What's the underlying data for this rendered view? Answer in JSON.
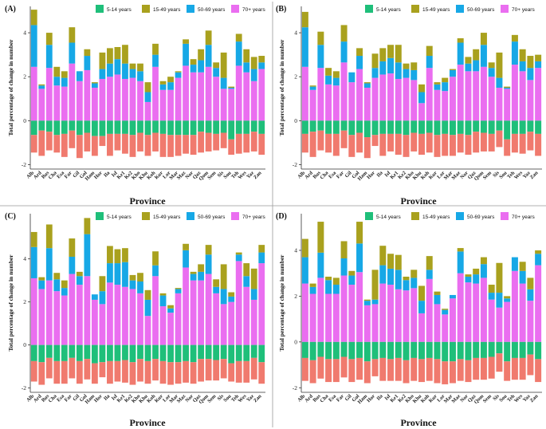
{
  "figure": {
    "x_axis_label": "Province",
    "y_axis_label": "Total percentage of change in number"
  },
  "colors": {
    "5-14 years": "#1fbf7a",
    "15-49 years": "#a9a11e",
    "50-69 years": "#17a8e6",
    "70+ years": "#ea6ef0",
    "negative_lower": "#f07a6e",
    "negative_upper": "#1fbf7a"
  },
  "chart_data": [
    {
      "panel_label": "(A)",
      "type": "bar",
      "stacked": true,
      "title": "",
      "xlabel": "Province",
      "ylabel": "Total percentage of change in number",
      "ylim": [
        -2.2,
        5.2
      ],
      "yticks": [
        -2,
        0,
        2,
        4
      ],
      "legend": [
        "5-14 years",
        "15-49 years",
        "50-69 years",
        "70+ years"
      ],
      "legend_position": "top-right",
      "categories": [
        "Alb",
        "Ard",
        "Bus",
        "Cha",
        "Esa",
        "Far",
        "Gil",
        "Gol",
        "Ham",
        "Hor",
        "Ila",
        "Isf",
        "Ke1",
        "Ke2",
        "Kho",
        "Khu",
        "Koh",
        "Kur",
        "Lor",
        "Mar",
        "Maz",
        "Nor",
        "Qaz",
        "Qom",
        "Sem",
        "Sis",
        "Sou",
        "Teh",
        "Wes",
        "Yaz",
        "Zan"
      ],
      "series": [
        {
          "name": "70+ years",
          "values": [
            2.45,
            1.45,
            2.4,
            1.6,
            1.55,
            2.6,
            1.8,
            2.3,
            1.5,
            1.9,
            2.0,
            2.1,
            1.9,
            1.95,
            1.8,
            0.85,
            2.45,
            1.4,
            1.4,
            1.95,
            2.5,
            2.2,
            2.2,
            2.45,
            2.0,
            1.45,
            1.45,
            2.5,
            2.2,
            1.8,
            2.35
          ]
        },
        {
          "name": "50-69 years",
          "values": [
            1.9,
            0.15,
            1.05,
            0.4,
            0.4,
            0.95,
            0.45,
            0.65,
            0.2,
            0.45,
            0.6,
            0.7,
            0.7,
            0.4,
            0.45,
            0.45,
            0.55,
            0.25,
            0.35,
            0.25,
            1.0,
            0.35,
            0.55,
            1.0,
            0.4,
            0.5,
            0.05,
            1.1,
            0.45,
            0.55,
            0.3
          ]
        },
        {
          "name": "15-49 years",
          "values": [
            0.7,
            0.05,
            0.55,
            0.45,
            0.3,
            0.7,
            0.0,
            0.3,
            0.05,
            0.75,
            0.7,
            0.55,
            0.85,
            0.25,
            0.35,
            0.45,
            0.5,
            0.15,
            0.25,
            0.05,
            0.2,
            0.25,
            0.5,
            0.65,
            0.25,
            1.15,
            0.05,
            0.35,
            0.6,
            0.55,
            0.3
          ]
        },
        {
          "name": "5-14 years",
          "values": [
            -0.65,
            -0.45,
            -0.5,
            -0.65,
            -0.6,
            -0.45,
            -0.65,
            -0.55,
            -0.7,
            -0.7,
            -0.6,
            -0.6,
            -0.6,
            -0.65,
            -0.55,
            -0.65,
            -0.55,
            -0.6,
            -0.65,
            -0.65,
            -0.65,
            -0.65,
            -0.5,
            -0.55,
            -0.6,
            -0.55,
            -0.85,
            -0.6,
            -0.6,
            -0.5,
            -0.6
          ]
        },
        {
          "name": "negative_lower",
          "values": [
            -0.8,
            -1.15,
            -0.85,
            -0.8,
            -1.05,
            -0.8,
            -1.05,
            -0.85,
            -0.9,
            -0.45,
            -1.0,
            -0.75,
            -0.9,
            -1.0,
            -0.85,
            -0.95,
            -0.85,
            -1.05,
            -1.0,
            -0.95,
            -0.85,
            -0.9,
            -0.95,
            -0.85,
            -0.75,
            -0.7,
            -0.7,
            -0.9,
            -0.85,
            -0.9,
            -0.95
          ]
        }
      ]
    },
    {
      "panel_label": "(B)",
      "type": "bar",
      "stacked": true,
      "title": "",
      "xlabel": "Province",
      "ylabel": "Total percentage of change in number",
      "ylim": [
        -2.2,
        5.2
      ],
      "yticks": [
        -2,
        0,
        2,
        4
      ],
      "legend": [
        "5-14 years",
        "15-49 years",
        "50-69 years",
        "70+ years"
      ],
      "legend_position": "top-right",
      "categories": [
        "Alb",
        "Ard",
        "Bus",
        "Cha",
        "Esa",
        "Far",
        "Gil",
        "Gol",
        "Ham",
        "Hor",
        "Ila",
        "Isf",
        "Ke1",
        "Ke2",
        "Kho",
        "Khu",
        "Koh",
        "Kur",
        "Lor",
        "Mar",
        "Maz",
        "Nor",
        "Qaz",
        "Qom",
        "Sem",
        "Sis",
        "Sou",
        "Teh",
        "Wes",
        "Yaz",
        "Zan"
      ],
      "series": [
        {
          "name": "70+ years",
          "values": [
            2.45,
            1.4,
            2.4,
            1.65,
            1.6,
            2.65,
            1.75,
            2.35,
            1.5,
            1.95,
            2.1,
            2.15,
            1.9,
            1.95,
            1.85,
            0.8,
            2.4,
            1.4,
            1.35,
            2.0,
            2.55,
            2.25,
            2.25,
            2.45,
            2.0,
            1.5,
            1.45,
            2.55,
            2.25,
            1.85,
            2.4
          ]
        },
        {
          "name": "50-69 years",
          "values": [
            1.8,
            0.15,
            1.05,
            0.4,
            0.35,
            0.95,
            0.45,
            0.6,
            0.2,
            0.45,
            0.6,
            0.7,
            0.75,
            0.4,
            0.45,
            0.5,
            0.55,
            0.25,
            0.4,
            0.3,
            1.0,
            0.35,
            0.5,
            1.0,
            0.4,
            0.45,
            0.05,
            1.05,
            0.45,
            0.55,
            0.3
          ]
        },
        {
          "name": "15-49 years",
          "values": [
            0.7,
            0.05,
            0.6,
            0.35,
            0.3,
            0.75,
            0.0,
            0.35,
            0.05,
            0.65,
            0.6,
            0.6,
            0.8,
            0.25,
            0.35,
            0.35,
            0.45,
            0.1,
            0.2,
            0.05,
            0.2,
            0.3,
            0.5,
            0.55,
            0.25,
            1.15,
            0.05,
            0.3,
            0.55,
            0.55,
            0.3
          ]
        },
        {
          "name": "5-14 years",
          "values": [
            -0.6,
            -0.5,
            -0.45,
            -0.6,
            -0.6,
            -0.45,
            -0.65,
            -0.55,
            -0.75,
            -0.65,
            -0.6,
            -0.6,
            -0.6,
            -0.65,
            -0.55,
            -0.6,
            -0.55,
            -0.65,
            -0.6,
            -0.65,
            -0.6,
            -0.65,
            -0.5,
            -0.55,
            -0.6,
            -0.45,
            -0.85,
            -0.6,
            -0.6,
            -0.5,
            -0.6
          ]
        },
        {
          "name": "negative_lower",
          "values": [
            -0.85,
            -1.15,
            -0.9,
            -0.85,
            -1.0,
            -0.8,
            -1.0,
            -0.9,
            -0.95,
            -0.5,
            -1.0,
            -0.8,
            -0.95,
            -1.0,
            -0.85,
            -0.95,
            -0.9,
            -1.0,
            -1.0,
            -0.95,
            -0.85,
            -0.9,
            -0.95,
            -0.85,
            -0.8,
            -0.75,
            -0.75,
            -0.85,
            -0.9,
            -0.85,
            -1.0
          ]
        }
      ]
    },
    {
      "panel_label": "(C)",
      "type": "bar",
      "stacked": true,
      "title": "",
      "xlabel": "Province",
      "ylabel": "Total percentage of change in number",
      "ylim": [
        -2.2,
        6.1
      ],
      "yticks": [
        -2,
        0,
        2,
        4
      ],
      "legend": [
        "5-14 years",
        "15-49 years",
        "50-69 years",
        "70+ years"
      ],
      "legend_position": "top-right",
      "categories": [
        "Alb",
        "Ard",
        "Bus",
        "Cha",
        "Esa",
        "Far",
        "Gil",
        "Gol",
        "Ham",
        "Hor",
        "Ila",
        "Isf",
        "Ke1",
        "Ke2",
        "Kho",
        "Khu",
        "Koh",
        "Kur",
        "Lor",
        "Mar",
        "Maz",
        "Nor",
        "Qaz",
        "Qom",
        "Sem",
        "Sis",
        "Sou",
        "Teh",
        "Wes",
        "Yaz",
        "Zan"
      ],
      "series": [
        {
          "name": "70+ years",
          "values": [
            3.1,
            2.6,
            3.0,
            2.5,
            2.3,
            3.3,
            2.8,
            3.2,
            2.1,
            1.9,
            2.9,
            2.8,
            2.7,
            2.6,
            2.4,
            1.35,
            3.2,
            1.8,
            1.5,
            2.4,
            3.6,
            3.0,
            3.0,
            3.3,
            2.4,
            1.9,
            2.0,
            3.9,
            2.7,
            2.1,
            3.8
          ]
        },
        {
          "name": "50-69 years",
          "values": [
            1.45,
            0.4,
            1.5,
            0.55,
            0.35,
            0.8,
            0.4,
            1.95,
            0.25,
            0.6,
            0.9,
            1.0,
            1.15,
            0.4,
            0.55,
            0.75,
            0.5,
            0.5,
            0.2,
            0.2,
            0.8,
            0.3,
            0.4,
            0.9,
            0.3,
            0.7,
            0.25,
            0.3,
            0.5,
            0.5,
            0.5
          ]
        },
        {
          "name": "15-49 years",
          "values": [
            0.7,
            0.15,
            1.1,
            0.3,
            0.35,
            0.85,
            0.2,
            0.75,
            0.0,
            0.7,
            0.8,
            0.65,
            0.65,
            0.25,
            0.4,
            0.45,
            0.65,
            0.1,
            0.15,
            0.05,
            0.3,
            0.1,
            0.35,
            0.45,
            0.35,
            1.15,
            0.2,
            0.1,
            0.6,
            0.95,
            0.35
          ]
        },
        {
          "name": "5-14 years",
          "values": [
            -0.75,
            -0.8,
            -0.6,
            -0.75,
            -0.75,
            -0.6,
            -0.75,
            -0.65,
            -0.85,
            -0.8,
            -0.75,
            -0.75,
            -0.7,
            -0.8,
            -0.65,
            -0.75,
            -0.65,
            -0.75,
            -0.8,
            -0.8,
            -0.75,
            -0.8,
            -0.65,
            -0.65,
            -0.7,
            -0.65,
            -0.85,
            -0.75,
            -0.75,
            -0.6,
            -0.8
          ]
        },
        {
          "name": "negative_lower",
          "values": [
            -0.95,
            -1.05,
            -0.95,
            -1.05,
            -1.05,
            -0.95,
            -1.05,
            -0.95,
            -0.95,
            -0.7,
            -1.05,
            -0.95,
            -1.05,
            -1.05,
            -1.05,
            -1.05,
            -1.0,
            -1.05,
            -1.05,
            -1.0,
            -1.0,
            -1.0,
            -1.05,
            -1.0,
            -0.95,
            -0.9,
            -0.85,
            -1.0,
            -1.0,
            -1.0,
            -1.0
          ]
        }
      ]
    },
    {
      "panel_label": "(D)",
      "type": "bar",
      "stacked": true,
      "title": "",
      "xlabel": "Province",
      "ylabel": "Total percentage of change in number",
      "ylim": [
        -2.2,
        5.6
      ],
      "yticks": [
        -2,
        0,
        2,
        4
      ],
      "legend": [
        "5-14 years",
        "15-49 years",
        "50-69 years",
        "70+ years"
      ],
      "legend_position": "top-right",
      "categories": [
        "Alb",
        "Ard",
        "Bus",
        "Cha",
        "Esa",
        "Far",
        "Gil",
        "Gol",
        "Ham",
        "Hor",
        "Ila",
        "Isf",
        "Ke1",
        "Ke2",
        "Kho",
        "Khu",
        "Koh",
        "Kur",
        "Lor",
        "Mar",
        "Maz",
        "Nor",
        "Qaz",
        "Qom",
        "Sem",
        "Sis",
        "Sou",
        "Teh",
        "Wes",
        "Yaz",
        "Zan"
      ],
      "series": [
        {
          "name": "70+ years",
          "values": [
            2.55,
            2.1,
            2.8,
            2.1,
            2.1,
            2.9,
            2.5,
            3.05,
            1.6,
            1.65,
            2.55,
            2.5,
            2.3,
            2.25,
            2.35,
            1.25,
            2.75,
            1.65,
            1.2,
            1.9,
            3.0,
            2.6,
            2.55,
            2.8,
            1.85,
            1.5,
            1.75,
            3.1,
            2.55,
            1.8,
            3.35
          ]
        },
        {
          "name": "50-69 years",
          "values": [
            1.15,
            0.3,
            1.1,
            0.6,
            0.4,
            0.75,
            0.4,
            1.25,
            0.2,
            0.2,
            0.8,
            0.7,
            0.85,
            0.45,
            0.45,
            0.55,
            0.4,
            0.4,
            0.2,
            0.15,
            0.95,
            0.25,
            0.4,
            0.6,
            0.3,
            0.65,
            0.15,
            0.6,
            0.55,
            0.5,
            0.5
          ]
        },
        {
          "name": "15-49 years",
          "values": [
            0.8,
            0.15,
            1.35,
            0.15,
            0.3,
            0.75,
            0.2,
            0.95,
            0.05,
            1.3,
            0.85,
            0.65,
            0.65,
            0.15,
            0.35,
            0.65,
            0.6,
            0.15,
            0.05,
            0.0,
            0.15,
            0.1,
            0.25,
            0.3,
            0.35,
            1.3,
            0.1,
            0.0,
            0.4,
            0.5,
            0.15
          ]
        },
        {
          "name": "5-14 years",
          "values": [
            -0.7,
            -0.8,
            -0.65,
            -0.75,
            -0.75,
            -0.65,
            -0.75,
            -0.7,
            -0.85,
            -0.75,
            -0.7,
            -0.75,
            -0.7,
            -0.8,
            -0.7,
            -0.75,
            -0.7,
            -0.75,
            -0.85,
            -0.85,
            -0.75,
            -0.8,
            -0.7,
            -0.7,
            -0.65,
            -0.5,
            -0.85,
            -0.7,
            -0.7,
            -0.55,
            -0.75
          ]
        },
        {
          "name": "negative_lower",
          "values": [
            -1.0,
            -1.0,
            -0.95,
            -1.0,
            -1.0,
            -0.9,
            -1.0,
            -0.95,
            -0.95,
            -0.75,
            -1.0,
            -0.95,
            -1.0,
            -1.0,
            -1.0,
            -1.0,
            -1.0,
            -1.05,
            -1.0,
            -0.95,
            -0.95,
            -0.95,
            -0.95,
            -0.95,
            -0.95,
            -0.8,
            -0.85,
            -0.95,
            -0.95,
            -0.9,
            -1.0
          ]
        }
      ]
    }
  ]
}
